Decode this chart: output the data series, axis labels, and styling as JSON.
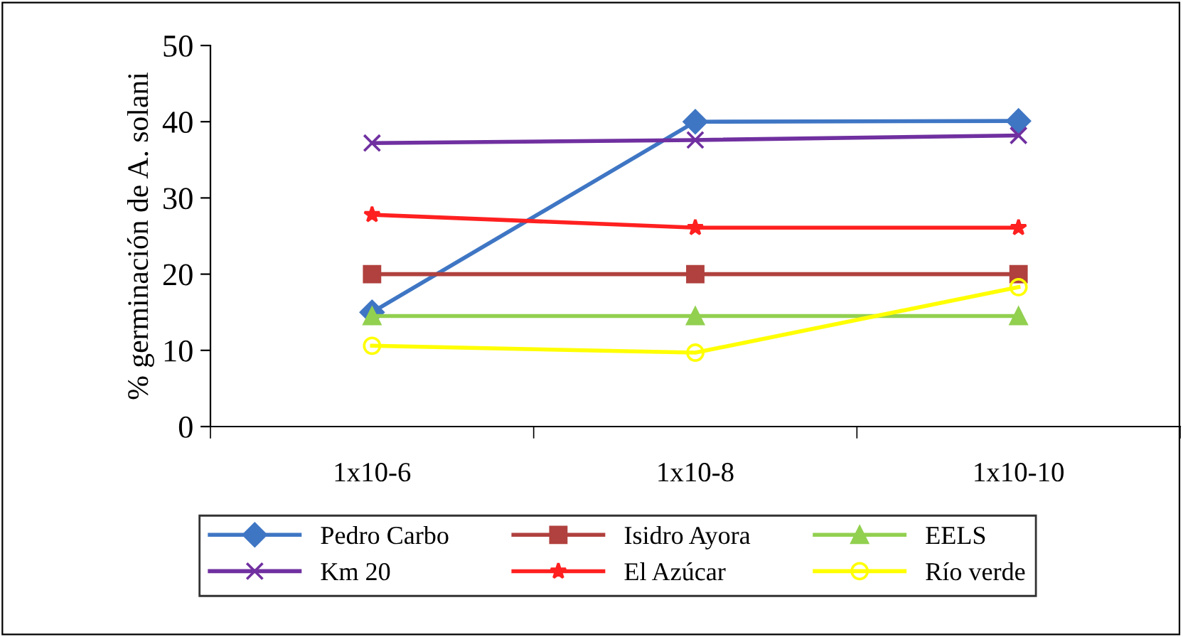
{
  "chart_data": {
    "type": "line",
    "ylabel": "% germinación de A. solani",
    "categories": [
      "1x10-6",
      "1x10-8",
      "1x10-10"
    ],
    "ylim": [
      0,
      50
    ],
    "yticks": [
      0,
      10,
      20,
      30,
      40,
      50
    ],
    "grid": false,
    "legend": "bottom",
    "line_style": "solid",
    "series": [
      {
        "name": "Pedro Carbo",
        "color": "#3f76c4",
        "marker": "diamond",
        "values": [
          15,
          40,
          40.1
        ]
      },
      {
        "name": "Isidro Ayora",
        "color": "#b0413e",
        "marker": "square",
        "values": [
          20,
          20,
          20
        ]
      },
      {
        "name": "EELS",
        "color": "#92d050",
        "marker": "triangle",
        "values": [
          14.5,
          14.5,
          14.5
        ]
      },
      {
        "name": "Km 20",
        "color": "#7030a0",
        "marker": "cross",
        "values": [
          37.2,
          37.6,
          38.2
        ]
      },
      {
        "name": "El Azúcar",
        "color": "#ff2020",
        "marker": "star",
        "values": [
          27.8,
          26.1,
          26.1
        ]
      },
      {
        "name": "Río verde",
        "color": "#ffff00",
        "marker": "circle",
        "values": [
          10.6,
          9.7,
          18.3
        ]
      }
    ]
  }
}
